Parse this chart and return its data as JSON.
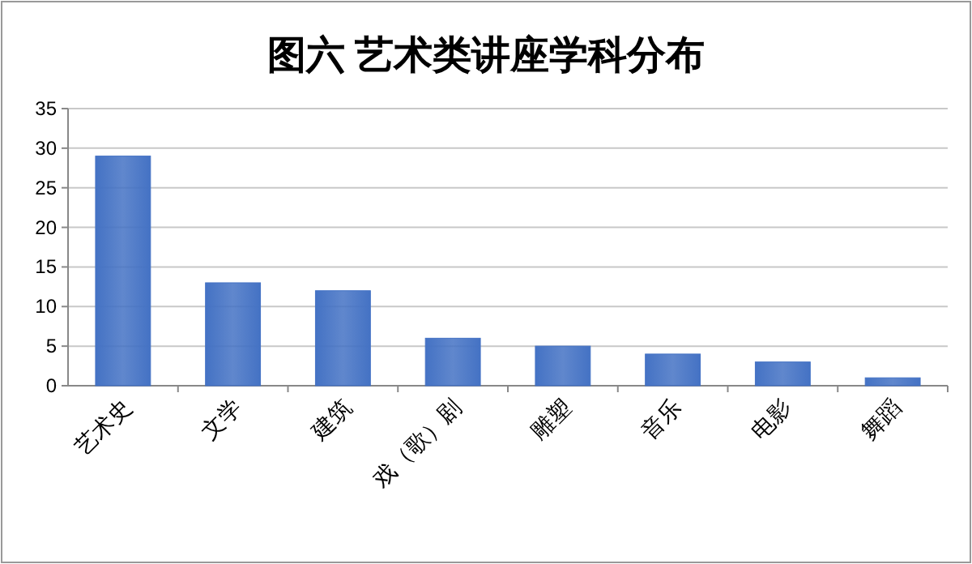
{
  "chart_data": {
    "type": "bar",
    "title": "图六  艺术类讲座学科分布",
    "categories": [
      "艺术史",
      "文学",
      "建筑",
      "戏（歌）剧",
      "雕塑",
      "音乐",
      "电影",
      "舞蹈"
    ],
    "values": [
      29,
      13,
      12,
      6,
      5,
      4,
      3,
      1
    ],
    "color": "#4472c4",
    "ylim": [
      0,
      35
    ],
    "yticks": [
      0,
      5,
      10,
      15,
      20,
      25,
      30,
      35
    ],
    "grid": "y"
  }
}
